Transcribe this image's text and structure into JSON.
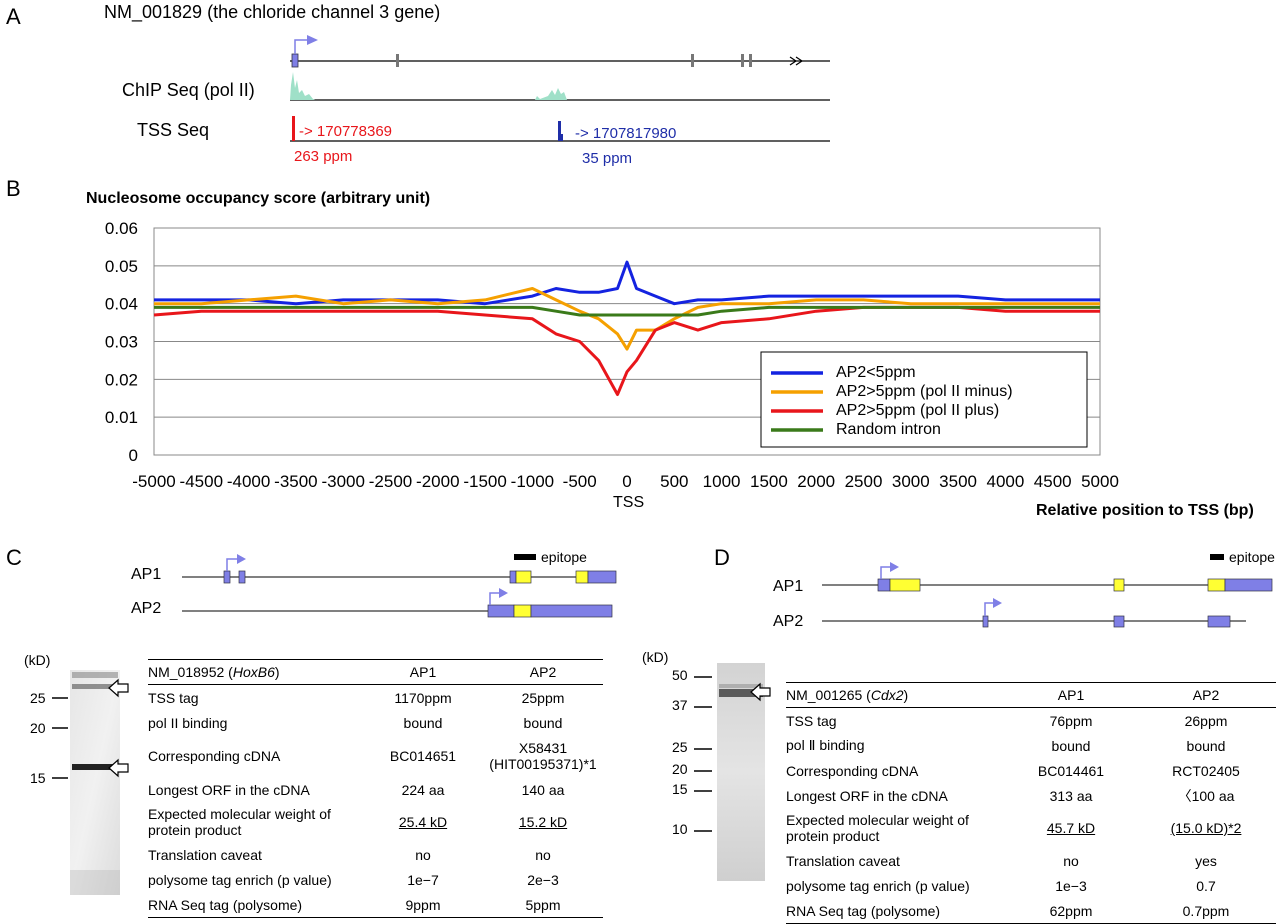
{
  "panelA": {
    "letter": "A",
    "gene_title": "NM_001829 (the chloride channel 3 gene)",
    "chip_label": "ChIP Seq (pol II)",
    "tss_label": "TSS Seq",
    "red_arrow_text": "-> 170778369",
    "red_ppm": "263 ppm",
    "blue_arrow_text": "-> 1707817980",
    "blue_ppm": "35 ppm",
    "colors": {
      "red": "#e8161b",
      "blue": "#1f2ea8",
      "chip": "#9fe0c8",
      "box": "#7f7fe6"
    }
  },
  "panelB": {
    "letter": "B",
    "title": "Nucleosome occupancy score (arbitrary unit)",
    "xlabel": "Relative position to TSS (bp)",
    "tss_label": "TSS",
    "legend": [
      "AP2<5ppm",
      "AP2>5ppm (pol II minus)",
      "AP2>5ppm (pol II plus)",
      "Random intron"
    ]
  },
  "chart_data": {
    "type": "line",
    "title": "Nucleosome occupancy score (arbitrary unit)",
    "xlabel": "Relative position to TSS (bp)",
    "ylabel": "",
    "xlim": [
      -5000,
      5000
    ],
    "ylim": [
      0,
      0.06
    ],
    "xticks": [
      "-5000",
      "-4500",
      "-4000",
      "-3500",
      "-3000",
      "-2500",
      "-2000",
      "-1500",
      "-1000",
      "-500",
      "0",
      "500",
      "1000",
      "1500",
      "2000",
      "2500",
      "3000",
      "3500",
      "4000",
      "4500",
      "5000"
    ],
    "yticks": [
      "0",
      "0.01",
      "0.02",
      "0.03",
      "0.04",
      "0.05",
      "0.06"
    ],
    "grid": true,
    "legend_position": "bottom-right",
    "x": [
      -5000,
      -4500,
      -4000,
      -3500,
      -3000,
      -2500,
      -2000,
      -1500,
      -1000,
      -750,
      -500,
      -300,
      -100,
      0,
      100,
      300,
      500,
      750,
      1000,
      1500,
      2000,
      2500,
      3000,
      3500,
      4000,
      4500,
      5000
    ],
    "series": [
      {
        "name": "AP2<5ppm",
        "color": "#1423e0",
        "values": [
          0.041,
          0.041,
          0.041,
          0.04,
          0.041,
          0.041,
          0.041,
          0.04,
          0.042,
          0.044,
          0.043,
          0.043,
          0.044,
          0.051,
          0.044,
          0.042,
          0.04,
          0.041,
          0.041,
          0.042,
          0.042,
          0.042,
          0.042,
          0.042,
          0.041,
          0.041,
          0.041
        ]
      },
      {
        "name": "AP2>5ppm (pol II minus)",
        "color": "#f5a000",
        "values": [
          0.04,
          0.04,
          0.041,
          0.042,
          0.04,
          0.041,
          0.04,
          0.041,
          0.044,
          0.041,
          0.038,
          0.036,
          0.032,
          0.028,
          0.033,
          0.033,
          0.036,
          0.039,
          0.04,
          0.04,
          0.041,
          0.041,
          0.04,
          0.04,
          0.04,
          0.04,
          0.04
        ]
      },
      {
        "name": "AP2>5ppm (pol II plus)",
        "color": "#e8161b",
        "values": [
          0.037,
          0.038,
          0.038,
          0.038,
          0.038,
          0.038,
          0.038,
          0.037,
          0.036,
          0.032,
          0.03,
          0.025,
          0.016,
          0.022,
          0.025,
          0.033,
          0.035,
          0.033,
          0.035,
          0.036,
          0.038,
          0.039,
          0.039,
          0.039,
          0.038,
          0.038,
          0.038
        ]
      },
      {
        "name": "Random intron",
        "color": "#3a7a1a",
        "values": [
          0.039,
          0.039,
          0.039,
          0.039,
          0.039,
          0.039,
          0.039,
          0.039,
          0.039,
          0.038,
          0.037,
          0.037,
          0.037,
          0.037,
          0.037,
          0.037,
          0.037,
          0.037,
          0.038,
          0.039,
          0.039,
          0.039,
          0.039,
          0.039,
          0.039,
          0.039,
          0.039
        ]
      }
    ]
  },
  "panelC": {
    "letter": "C",
    "ap1": "AP1",
    "ap2": "AP2",
    "epitope": "epitope",
    "kd_label": "(kD)",
    "markers": [
      "25",
      "20",
      "15"
    ],
    "table": {
      "header": {
        "gene": "NM_018952 (",
        "gene_italic": "HoxB6",
        "gene_close": ")",
        "col1": "AP1",
        "col2": "AP2"
      },
      "rows": [
        {
          "label": "TSS tag",
          "ap1": "1170ppm",
          "ap2": "25ppm"
        },
        {
          "label": "pol II binding",
          "ap1": "bound",
          "ap2": "bound"
        },
        {
          "label": "Corresponding cDNA",
          "ap1": "BC014651",
          "ap2": "X58431",
          "ap2_line2": "(HIT00195371)*1"
        },
        {
          "label": "Longest ORF in the cDNA",
          "ap1": "224 aa",
          "ap2": "140 aa"
        },
        {
          "label": "Expected molecular weight of",
          "label_line2": "protein product",
          "ap1": "25.4 kD",
          "ap2": "15.2 kD"
        },
        {
          "label": "Translation caveat",
          "ap1": "no",
          "ap2": "no"
        },
        {
          "label": "polysome tag enrich (p value)",
          "ap1": "1e−7",
          "ap2": "2e−3"
        },
        {
          "label": "RNA Seq tag (polysome)",
          "ap1": "9ppm",
          "ap2": "5ppm"
        }
      ]
    }
  },
  "panelD": {
    "letter": "D",
    "ap1": "AP1",
    "ap2": "AP2",
    "epitope": "epitope",
    "kd_label": "(kD)",
    "markers": [
      "50",
      "37",
      "25",
      "20",
      "15",
      "10"
    ],
    "table": {
      "header": {
        "gene": "NM_001265 (",
        "gene_italic": "Cdx2",
        "gene_close": ")",
        "col1": "AP1",
        "col2": "AP2"
      },
      "rows": [
        {
          "label": "TSS tag",
          "ap1": "76ppm",
          "ap2": "26ppm"
        },
        {
          "label": "pol Ⅱ binding",
          "ap1": "bound",
          "ap2": "bound"
        },
        {
          "label": "Corresponding cDNA",
          "ap1": "BC014461",
          "ap2": "RCT02405"
        },
        {
          "label": "Longest ORF in the cDNA",
          "ap1": "313 aa",
          "ap2": "〈100 aa"
        },
        {
          "label": "Expected molecular weight of",
          "label_line2": "protein product",
          "ap1": "45.7 kD",
          "ap2": "(15.0 kD)*2"
        },
        {
          "label": "Translation caveat",
          "ap1": "no",
          "ap2": "yes"
        },
        {
          "label": "polysome tag enrich (p value)",
          "ap1": "1e−3",
          "ap2": "0.7"
        },
        {
          "label": "RNA Seq tag (polysome)",
          "ap1": "62ppm",
          "ap2": "0.7ppm"
        }
      ]
    }
  }
}
